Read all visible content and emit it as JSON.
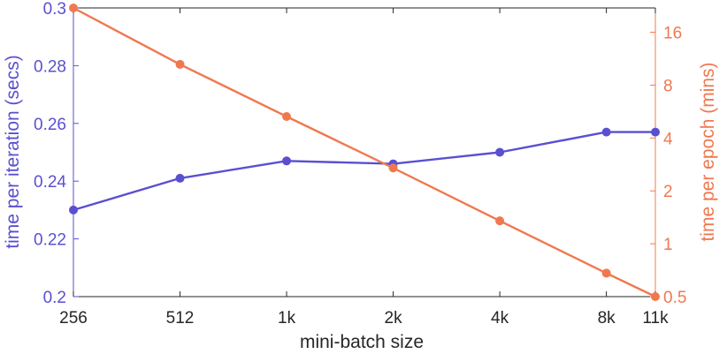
{
  "chart_data": {
    "type": "line",
    "xlabel": "mini-batch size",
    "categories": [
      "256",
      "512",
      "1k",
      "2k",
      "4k",
      "8k",
      "11k"
    ],
    "x": [
      256,
      512,
      1024,
      2048,
      4096,
      8192,
      11264
    ],
    "x_scale": "log2",
    "grid": false,
    "left_axis": {
      "label": "time per iteration (secs)",
      "color": "#5a4fd1",
      "ylim": [
        0.2,
        0.3
      ],
      "ticks": [
        "0.2",
        "0.22",
        "0.24",
        "0.26",
        "0.28",
        "0.3"
      ],
      "tick_values": [
        0.2,
        0.22,
        0.24,
        0.26,
        0.28,
        0.3
      ]
    },
    "right_axis": {
      "label": "time per epoch (mins)",
      "color": "#f07850",
      "scale": "log2",
      "ylim": [
        0.5,
        22
      ],
      "ticks": [
        "0.5",
        "1",
        "2",
        "4",
        "8",
        "16"
      ],
      "tick_values": [
        0.5,
        1,
        2,
        4,
        8,
        16
      ]
    },
    "series": [
      {
        "axis": "left",
        "color": "#5a4fd1",
        "values": [
          0.23,
          0.241,
          0.247,
          0.246,
          0.25,
          0.257,
          0.257
        ]
      },
      {
        "axis": "right",
        "color": "#f07850",
        "values": [
          22,
          10.5,
          5.3,
          2.7,
          1.35,
          0.68,
          0.5
        ]
      }
    ]
  }
}
